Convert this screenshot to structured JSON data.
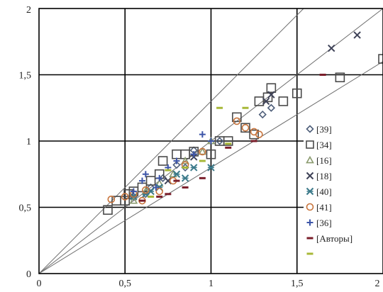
{
  "chart_data": {
    "type": "scatter",
    "xlim": [
      0,
      2
    ],
    "ylim": [
      0,
      2
    ],
    "x_ticks": [
      {
        "value": 0,
        "label": "0"
      },
      {
        "value": 0.5,
        "label": "0,5"
      },
      {
        "value": 1,
        "label": "1"
      },
      {
        "value": 1.5,
        "label": "1,5"
      },
      {
        "value": 2,
        "label": "2"
      }
    ],
    "y_ticks": [
      {
        "value": 0,
        "label": "0"
      },
      {
        "value": 0.5,
        "label": "0,5"
      },
      {
        "value": 1,
        "label": "1"
      },
      {
        "value": 1.5,
        "label": "1,5"
      },
      {
        "value": 2,
        "label": "2"
      }
    ],
    "grid": true,
    "legend_position": "right",
    "reference_lines": [
      {
        "slope": 1.3
      },
      {
        "slope": 1.0
      },
      {
        "slope": 0.8
      }
    ],
    "series": [
      {
        "name": "[39]",
        "marker": "diamond",
        "color": "#4f5f7a",
        "points": [
          [
            0.55,
            0.58
          ],
          [
            0.65,
            0.65
          ],
          [
            0.72,
            0.72
          ],
          [
            0.8,
            0.82
          ],
          [
            0.9,
            0.93
          ],
          [
            1.05,
            1.0
          ],
          [
            1.35,
            1.25
          ],
          [
            1.3,
            1.2
          ],
          [
            0.62,
            0.6
          ],
          [
            0.85,
            0.8
          ]
        ]
      },
      {
        "name": "[34]",
        "marker": "square",
        "color": "#4a4a4a",
        "points": [
          [
            0.4,
            0.48
          ],
          [
            0.45,
            0.55
          ],
          [
            0.5,
            0.55
          ],
          [
            0.52,
            0.6
          ],
          [
            0.55,
            0.62
          ],
          [
            0.6,
            0.65
          ],
          [
            0.65,
            0.7
          ],
          [
            0.7,
            0.75
          ],
          [
            0.72,
            0.85
          ],
          [
            0.8,
            0.9
          ],
          [
            0.85,
            0.9
          ],
          [
            0.9,
            0.92
          ],
          [
            1.0,
            0.9
          ],
          [
            1.05,
            1.0
          ],
          [
            1.1,
            1.0
          ],
          [
            1.15,
            1.18
          ],
          [
            1.2,
            1.1
          ],
          [
            1.25,
            1.05
          ],
          [
            1.28,
            1.3
          ],
          [
            1.33,
            1.33
          ],
          [
            1.35,
            1.4
          ],
          [
            1.42,
            1.3
          ],
          [
            1.5,
            1.36
          ],
          [
            1.75,
            1.48
          ],
          [
            2.0,
            1.62
          ]
        ]
      },
      {
        "name": "[16]",
        "marker": "triangle",
        "color": "#8a9a6e",
        "points": [
          [
            0.55,
            0.55
          ],
          [
            0.62,
            0.62
          ],
          [
            0.7,
            0.68
          ],
          [
            0.78,
            0.75
          ],
          [
            0.85,
            0.85
          ],
          [
            0.95,
            0.92
          ],
          [
            1.0,
            1.0
          ]
        ]
      },
      {
        "name": "[18]",
        "marker": "x",
        "color": "#3f4358",
        "points": [
          [
            1.32,
            1.3
          ],
          [
            1.35,
            1.35
          ],
          [
            1.7,
            1.7
          ],
          [
            1.85,
            1.8
          ],
          [
            0.75,
            0.7
          ],
          [
            0.9,
            0.88
          ]
        ]
      },
      {
        "name": "[40]",
        "marker": "asterisk",
        "color": "#3b7a8a",
        "points": [
          [
            0.55,
            0.58
          ],
          [
            0.62,
            0.6
          ],
          [
            0.7,
            0.65
          ],
          [
            0.8,
            0.75
          ],
          [
            0.85,
            0.72
          ],
          [
            0.9,
            0.8
          ],
          [
            1.0,
            0.8
          ],
          [
            0.65,
            0.62
          ]
        ]
      },
      {
        "name": "[41]",
        "marker": "circle",
        "color": "#c8743c",
        "points": [
          [
            0.42,
            0.56
          ],
          [
            0.5,
            0.58
          ],
          [
            0.55,
            0.6
          ],
          [
            0.62,
            0.63
          ],
          [
            0.7,
            0.62
          ],
          [
            0.78,
            0.7
          ],
          [
            0.85,
            0.82
          ],
          [
            0.95,
            0.92
          ],
          [
            1.15,
            1.15
          ],
          [
            1.2,
            1.1
          ],
          [
            1.25,
            1.07
          ],
          [
            1.28,
            1.05
          ],
          [
            0.6,
            0.55
          ]
        ]
      },
      {
        "name": "[36]",
        "marker": "plus",
        "color": "#3d55a8",
        "points": [
          [
            0.55,
            0.62
          ],
          [
            0.6,
            0.7
          ],
          [
            0.62,
            0.75
          ],
          [
            0.7,
            0.72
          ],
          [
            0.75,
            0.8
          ],
          [
            0.8,
            0.85
          ],
          [
            0.9,
            0.9
          ],
          [
            0.95,
            1.05
          ],
          [
            1.0,
            1.0
          ],
          [
            0.68,
            0.65
          ]
        ]
      },
      {
        "name": "[Авторы]",
        "marker": "dash",
        "color": "#7a1e2a",
        "points": [
          [
            0.6,
            0.55
          ],
          [
            0.7,
            0.58
          ],
          [
            0.75,
            0.6
          ],
          [
            0.85,
            0.65
          ],
          [
            0.95,
            0.72
          ],
          [
            1.1,
            0.95
          ],
          [
            1.25,
            1.0
          ],
          [
            1.65,
            1.5
          ],
          [
            0.8,
            0.7
          ]
        ]
      },
      {
        "name": "",
        "marker": "dash",
        "color": "#a8b838",
        "points": [
          [
            0.75,
            0.78
          ],
          [
            0.85,
            0.8
          ],
          [
            1.05,
            1.25
          ],
          [
            1.1,
            0.98
          ],
          [
            1.2,
            1.25
          ],
          [
            0.65,
            0.58
          ],
          [
            0.95,
            0.85
          ]
        ]
      }
    ]
  }
}
